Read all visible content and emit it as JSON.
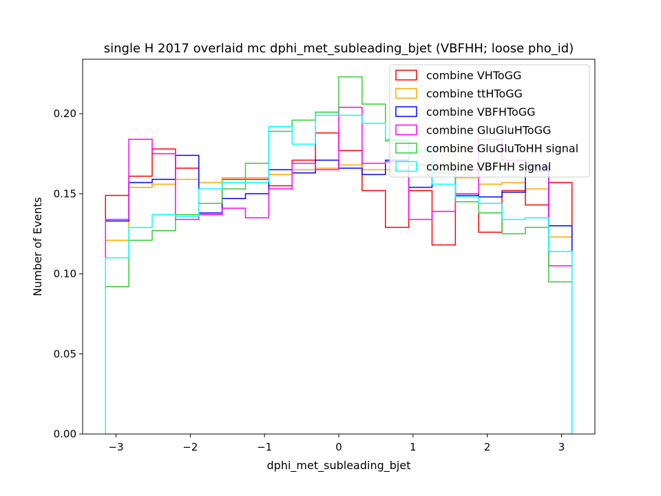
{
  "chart_data": {
    "type": "step",
    "title": "single H 2017 overlaid mc dphi_met_subleading_bjet (VBFHH; loose pho_id)",
    "xlabel": "dphi_met_subleading_bjet",
    "ylabel": "Number of Events",
    "xlim": [
      -3.45,
      3.45
    ],
    "ylim": [
      0,
      0.234
    ],
    "xticks": [
      -3,
      -2,
      -1,
      0,
      1,
      2,
      3
    ],
    "xtick_labels": [
      "−3",
      "−2",
      "−1",
      "0",
      "1",
      "2",
      "3"
    ],
    "yticks": [
      0.0,
      0.05,
      0.1,
      0.15,
      0.2
    ],
    "ytick_labels": [
      "0.00",
      "0.05",
      "0.10",
      "0.15",
      "0.20"
    ],
    "bin_edges": [
      -3.1416,
      -2.8274,
      -2.5133,
      -2.1991,
      -1.885,
      -1.5708,
      -1.2566,
      -0.9425,
      -0.6283,
      -0.3142,
      0.0,
      0.3142,
      0.6283,
      0.9425,
      1.2566,
      1.5708,
      1.885,
      2.1991,
      2.5133,
      2.8274,
      3.1416
    ],
    "legend_position": "upper right",
    "grid": false,
    "series": [
      {
        "name": "combine VHToGG",
        "color": "#ff0000",
        "values": [
          0.149,
          0.161,
          0.178,
          0.166,
          0.137,
          0.159,
          0.159,
          0.155,
          0.171,
          0.188,
          0.177,
          0.152,
          0.129,
          0.152,
          0.118,
          0.165,
          0.126,
          0.152,
          0.143,
          0.157
        ]
      },
      {
        "name": "combine ttHToGG",
        "color": "#ffa500",
        "values": [
          0.121,
          0.154,
          0.156,
          0.159,
          0.157,
          0.16,
          0.16,
          0.162,
          0.165,
          0.166,
          0.168,
          0.165,
          0.165,
          0.168,
          0.174,
          0.16,
          0.156,
          0.157,
          0.153,
          0.123
        ]
      },
      {
        "name": "combine VBFHToGG",
        "color": "#0000ff",
        "values": [
          0.133,
          0.157,
          0.159,
          0.174,
          0.138,
          0.147,
          0.15,
          0.165,
          0.163,
          0.171,
          0.166,
          0.162,
          0.171,
          0.154,
          0.163,
          0.149,
          0.148,
          0.151,
          0.167,
          0.13
        ]
      },
      {
        "name": "combine GluGluHToGG",
        "color": "#ff00ff",
        "values": [
          0.134,
          0.184,
          0.175,
          0.134,
          0.137,
          0.141,
          0.135,
          0.153,
          0.169,
          0.165,
          0.204,
          0.169,
          0.17,
          0.134,
          0.139,
          0.15,
          0.184,
          0.171,
          0.164,
          0.105
        ]
      },
      {
        "name": "combine GluGluToHH signal",
        "color": "#32cd32",
        "values": [
          0.092,
          0.121,
          0.127,
          0.137,
          0.144,
          0.153,
          0.169,
          0.189,
          0.196,
          0.201,
          0.223,
          0.206,
          0.183,
          0.168,
          0.163,
          0.145,
          0.138,
          0.125,
          0.129,
          0.095
        ]
      },
      {
        "name": "combine VBFHH signal",
        "color": "#00ffff",
        "values": [
          0.11,
          0.129,
          0.137,
          0.136,
          0.153,
          0.157,
          0.157,
          0.192,
          0.181,
          0.199,
          0.199,
          0.194,
          0.184,
          0.177,
          0.156,
          0.148,
          0.144,
          0.134,
          0.135,
          0.114
        ]
      }
    ]
  }
}
